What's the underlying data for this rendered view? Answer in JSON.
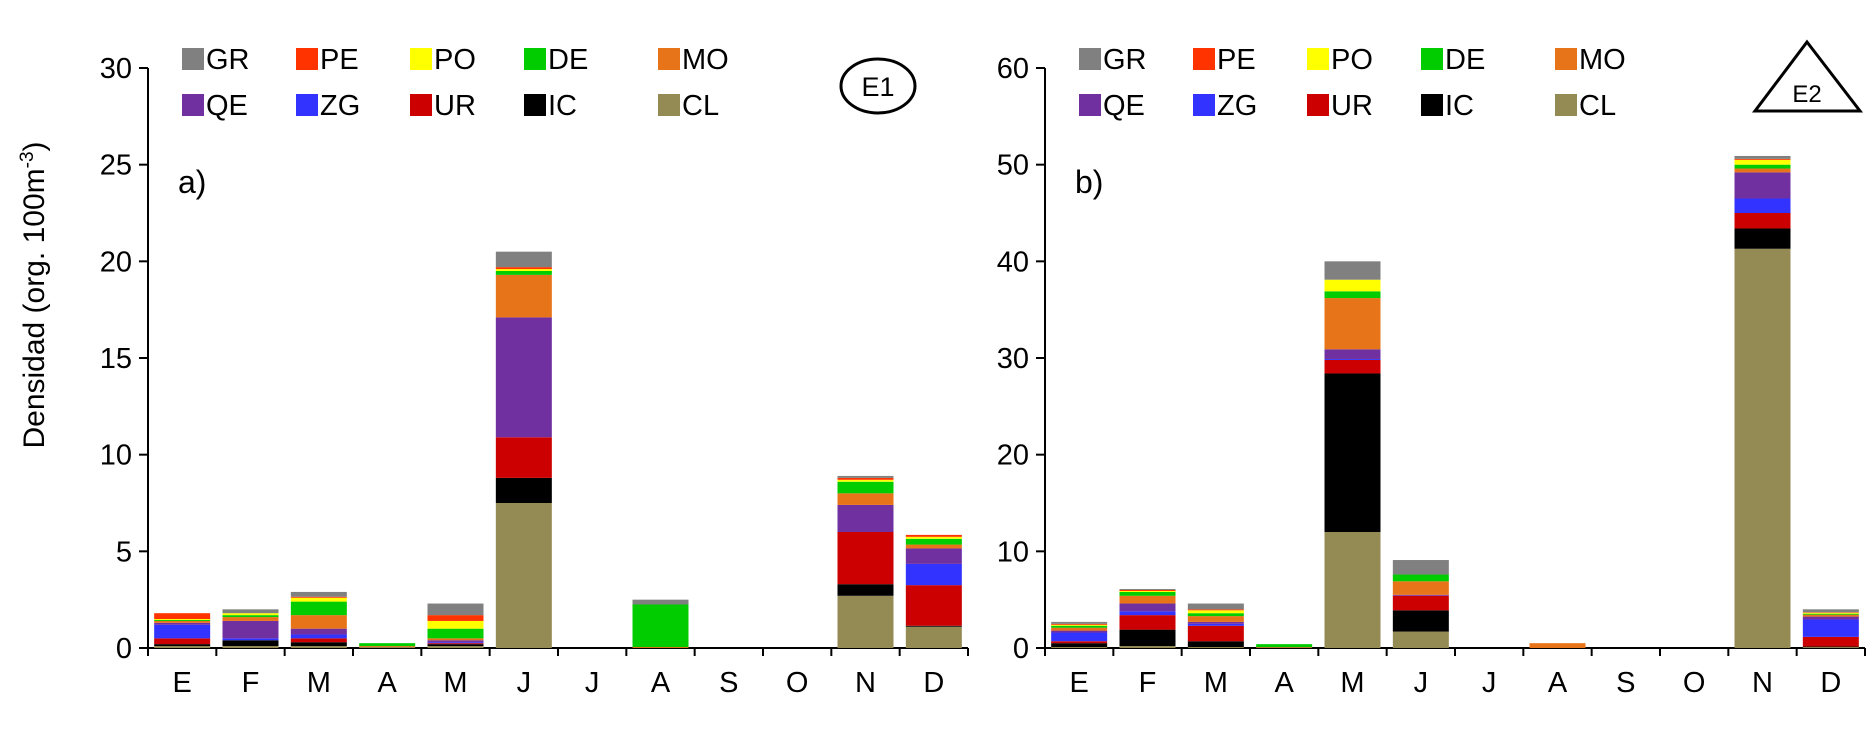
{
  "ylabel": "Densidad (org. 100m",
  "ylabel_sup": "-3",
  "legend_order": [
    "GR",
    "PE",
    "PO",
    "DE",
    "MO",
    "QE",
    "ZG",
    "UR",
    "IC",
    "CL"
  ],
  "stack_order": [
    "CL",
    "IC",
    "UR",
    "ZG",
    "QE",
    "MO",
    "DE",
    "PO",
    "PE",
    "GR"
  ],
  "colors": {
    "GR": "#808080",
    "PE": "#ff3300",
    "PO": "#ffff00",
    "DE": "#00cc00",
    "MO": "#e8741a",
    "QE": "#7030a0",
    "ZG": "#3333ff",
    "UR": "#cc0000",
    "IC": "#000000",
    "CL": "#948a54"
  },
  "chart_data": [
    {
      "type": "bar",
      "stacked": true,
      "panel_label": "a)",
      "marker": "E1",
      "marker_shape": "circle",
      "categories": [
        "E",
        "F",
        "M",
        "A",
        "M",
        "J",
        "J",
        "A",
        "S",
        "O",
        "N",
        "D"
      ],
      "ylim": [
        0,
        30
      ],
      "yticks": [
        "0",
        "5",
        "10",
        "15",
        "20",
        "25",
        "30"
      ],
      "legend": "top",
      "series": [
        {
          "name": "CL",
          "values": [
            0.1,
            0.1,
            0.1,
            0.05,
            0.1,
            7.5,
            0,
            0,
            0,
            0,
            2.7,
            1.1
          ]
        },
        {
          "name": "IC",
          "values": [
            0.1,
            0.3,
            0.2,
            0,
            0.1,
            1.3,
            0,
            0,
            0,
            0,
            0.6,
            0.05
          ]
        },
        {
          "name": "UR",
          "values": [
            0.3,
            0,
            0.2,
            0,
            0.05,
            2.1,
            0,
            0,
            0,
            0,
            2.7,
            2.1
          ]
        },
        {
          "name": "ZG",
          "values": [
            0.7,
            0.1,
            0.2,
            0,
            0.05,
            0,
            0,
            0,
            0,
            0,
            0,
            1.1
          ]
        },
        {
          "name": "QE",
          "values": [
            0.1,
            0.9,
            0.3,
            0,
            0.1,
            6.2,
            0,
            0,
            0,
            0,
            1.4,
            0.8
          ]
        },
        {
          "name": "MO",
          "values": [
            0.1,
            0.2,
            0.7,
            0.05,
            0.1,
            2.2,
            0,
            0.05,
            0,
            0,
            0.6,
            0.2
          ]
        },
        {
          "name": "DE",
          "values": [
            0.05,
            0.1,
            0.7,
            0.15,
            0.5,
            0.2,
            0,
            2.2,
            0,
            0,
            0.6,
            0.3
          ]
        },
        {
          "name": "PO",
          "values": [
            0.05,
            0.1,
            0.2,
            0,
            0.4,
            0.1,
            0,
            0,
            0,
            0,
            0.1,
            0.1
          ]
        },
        {
          "name": "PE",
          "values": [
            0.3,
            0,
            0.05,
            0,
            0.3,
            0.1,
            0,
            0,
            0,
            0,
            0.1,
            0.1
          ]
        },
        {
          "name": "GR",
          "values": [
            0,
            0.2,
            0.25,
            0,
            0.6,
            0.8,
            0,
            0.25,
            0,
            0,
            0.1,
            0
          ]
        }
      ]
    },
    {
      "type": "bar",
      "stacked": true,
      "panel_label": "b)",
      "marker": "E2",
      "marker_shape": "triangle",
      "categories": [
        "E",
        "F",
        "M",
        "A",
        "M",
        "J",
        "J",
        "A",
        "S",
        "O",
        "N",
        "D"
      ],
      "ylim": [
        0,
        60
      ],
      "yticks": [
        "0",
        "10",
        "20",
        "30",
        "40",
        "50",
        "60"
      ],
      "legend": "top",
      "series": [
        {
          "name": "CL",
          "values": [
            0.1,
            0.2,
            0.1,
            0.05,
            12,
            1.7,
            0,
            0,
            0,
            0,
            41.3,
            0.1
          ]
        },
        {
          "name": "IC",
          "values": [
            0.4,
            1.7,
            0.6,
            0,
            16.4,
            2.2,
            0,
            0,
            0,
            0,
            2.1,
            0.05
          ]
        },
        {
          "name": "UR",
          "values": [
            0.2,
            1.5,
            1.6,
            0,
            1.4,
            1.5,
            0,
            0,
            0,
            0,
            1.6,
            1.0
          ]
        },
        {
          "name": "ZG",
          "values": [
            0.9,
            0.4,
            0.2,
            0,
            0.1,
            0,
            0,
            0,
            0,
            0,
            1.5,
            1.8
          ]
        },
        {
          "name": "QE",
          "values": [
            0.2,
            0.8,
            0.2,
            0,
            1,
            0.1,
            0,
            0,
            0,
            0,
            2.7,
            0.3
          ]
        },
        {
          "name": "MO",
          "values": [
            0.3,
            0.8,
            0.6,
            0.05,
            5.3,
            1.4,
            0,
            0.5,
            0,
            0,
            0.4,
            0.2
          ]
        },
        {
          "name": "DE",
          "values": [
            0.2,
            0.4,
            0.3,
            0.3,
            0.7,
            0.7,
            0,
            0,
            0,
            0,
            0.4,
            0.1
          ]
        },
        {
          "name": "PO",
          "values": [
            0.1,
            0.1,
            0.3,
            0,
            1.2,
            0,
            0,
            0,
            0,
            0,
            0.5,
            0.1
          ]
        },
        {
          "name": "PE",
          "values": [
            0.1,
            0.1,
            0.1,
            0,
            0,
            0,
            0,
            0,
            0,
            0,
            0.1,
            0.05
          ]
        },
        {
          "name": "GR",
          "values": [
            0.2,
            0.1,
            0.6,
            0,
            1.9,
            1.5,
            0,
            0,
            0,
            0,
            0.3,
            0.3
          ]
        }
      ]
    }
  ]
}
